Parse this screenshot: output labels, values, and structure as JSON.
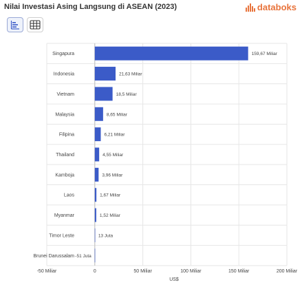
{
  "header": {
    "title": "Nilai Investasi Asing Langsung di ASEAN (2023)",
    "brand": "databoks"
  },
  "toolbar": {
    "chart_icon": "bar-chart-icon",
    "table_icon": "table-grid-icon"
  },
  "colors": {
    "bar": "#3b5bc8",
    "grid": "#e6e6e6",
    "brand": "#e8733b"
  },
  "chart_data": {
    "type": "bar",
    "orientation": "horizontal",
    "title": "Nilai Investasi Asing Langsung di ASEAN (2023)",
    "xlabel": "US$",
    "ylabel": "",
    "categories": [
      "Singapura",
      "Indonesia",
      "Vietnam",
      "Malaysia",
      "Filipina",
      "Thailand",
      "Kamboja",
      "Laos",
      "Myanmar",
      "Timor Leste",
      "Brunei Darussalam"
    ],
    "values": [
      159.67,
      21.63,
      18.5,
      8.65,
      6.21,
      4.55,
      3.96,
      1.67,
      1.52,
      0.013,
      -0.051
    ],
    "value_labels": [
      "159,67 Miliar",
      "21,63 Miliar",
      "18,5 Miliar",
      "8,65 Miliar",
      "6,21 Miliar",
      "4,55 Miliar",
      "3,96 Miliar",
      "1,67 Miliar",
      "1,52 Miliar",
      "13 Juta",
      "-51 Juta"
    ],
    "xlim": [
      -50,
      200
    ],
    "xticks": [
      -50,
      0,
      50,
      100,
      150,
      200
    ],
    "xtick_labels": [
      "-50 Miliar",
      "0",
      "50 Miliar",
      "100 Miliar",
      "150 Miliar",
      "200 Miliar"
    ],
    "grid": true,
    "legend": "none"
  }
}
